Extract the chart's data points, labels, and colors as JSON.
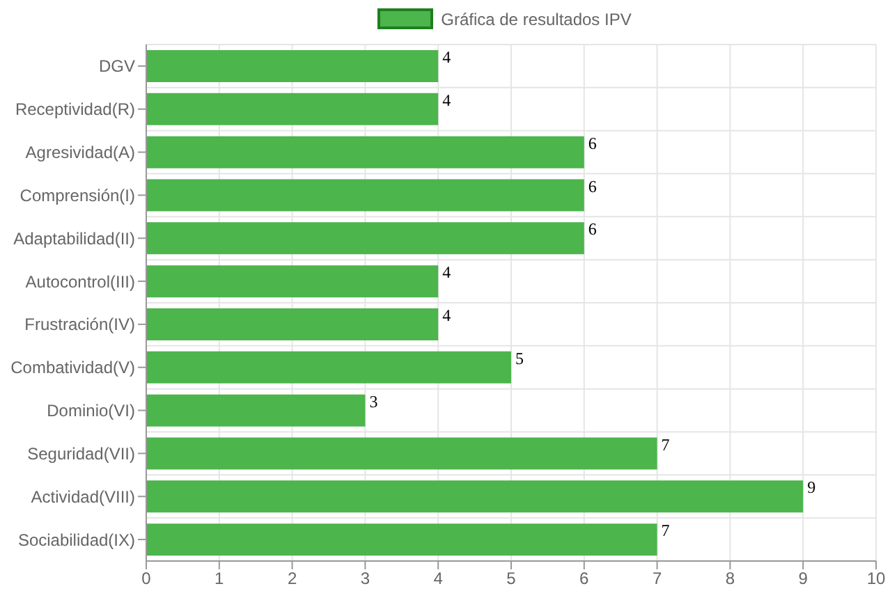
{
  "chart_data": {
    "type": "bar",
    "orientation": "horizontal",
    "categories": [
      "DGV",
      "Receptividad(R)",
      "Agresividad(A)",
      "Comprensión(I)",
      "Adaptabilidad(II)",
      "Autocontrol(III)",
      "Frustración(IV)",
      "Combatividad(V)",
      "Dominio(VI)",
      "Seguridad(VII)",
      "Actividad(VIII)",
      "Sociabilidad(IX)"
    ],
    "series": [
      {
        "name": "Gráfica de resultados IPV",
        "color": "#4cb54c",
        "values": [
          4,
          4,
          6,
          6,
          6,
          4,
          4,
          5,
          3,
          7,
          9,
          7
        ]
      }
    ],
    "xlim": [
      0,
      10
    ],
    "xticks": [
      0,
      1,
      2,
      3,
      4,
      5,
      6,
      7,
      8,
      9,
      10
    ],
    "grid": true,
    "legend": "top",
    "data_labels": true
  }
}
